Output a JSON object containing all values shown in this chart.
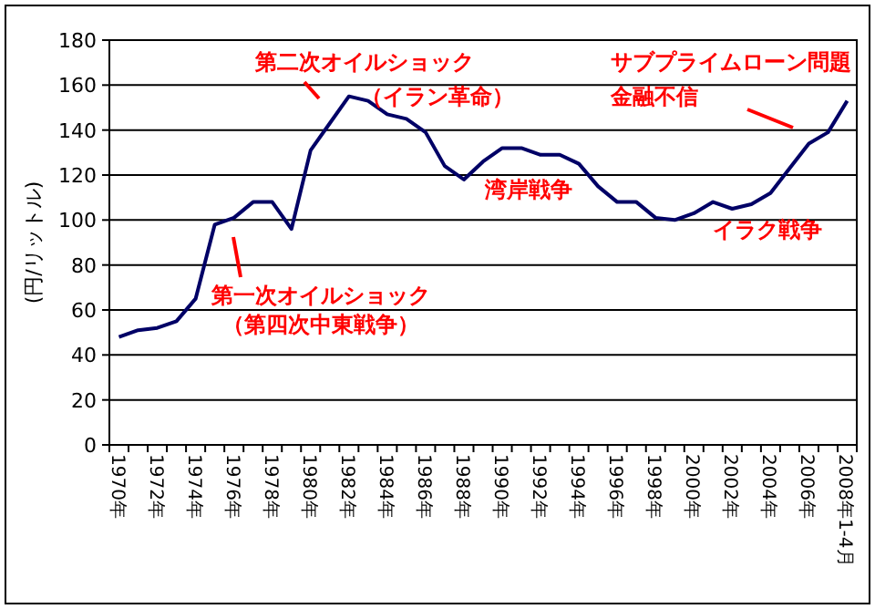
{
  "chart_data": {
    "type": "line",
    "ylabel": "(円/リットル)",
    "categories": [
      "1970年",
      null,
      "1972年",
      null,
      "1974年",
      null,
      "1976年",
      null,
      "1978年",
      null,
      "1980年",
      null,
      "1982年",
      null,
      "1984年",
      null,
      "1986年",
      null,
      "1988年",
      null,
      "1990年",
      null,
      "1992年",
      null,
      "1994年",
      null,
      "1996年",
      null,
      "1998年",
      null,
      "2000年",
      null,
      "2002年",
      null,
      "2004年",
      null,
      "2006年",
      null,
      "2008年1-4月"
    ],
    "series": [
      {
        "color": "#000066",
        "values": [
          48,
          51,
          52,
          55,
          65,
          98,
          101,
          108,
          108,
          96,
          131,
          143,
          155,
          153,
          147,
          145,
          139,
          124,
          118,
          126,
          132,
          132,
          129,
          129,
          125,
          115,
          108,
          108,
          101,
          100,
          103,
          108,
          105,
          107,
          112,
          123,
          134,
          139,
          153
        ]
      }
    ],
    "ylim": [
      0,
      180
    ],
    "yticks": [
      0,
      20,
      40,
      60,
      80,
      100,
      120,
      140,
      160,
      180
    ],
    "grid": "y",
    "marker": "none",
    "line_style": "solid",
    "annotations": [
      "第一次オイルショック",
      "（第四次中東戦争）",
      "第二次オイルショック",
      "（イラン革命）",
      "湾岸戦争",
      "イラク戦争",
      "サブプライムローン問題",
      "金融不信"
    ]
  }
}
